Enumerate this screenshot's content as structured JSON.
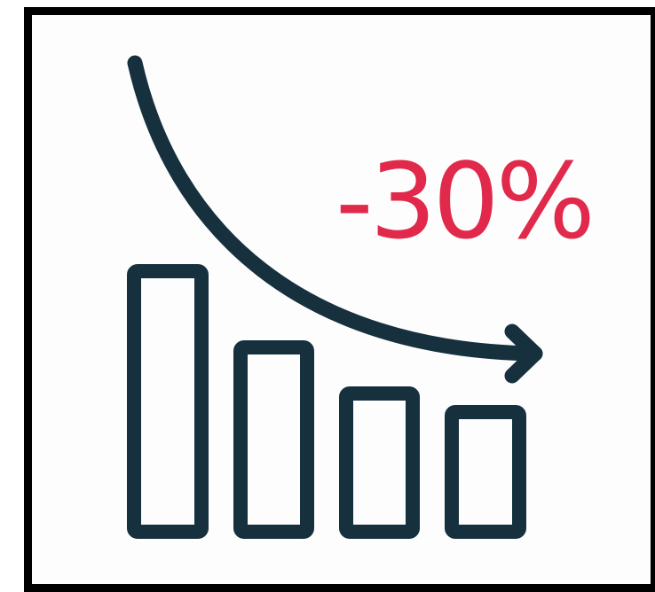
{
  "label": {
    "text": "-30%"
  },
  "colors": {
    "frame": "#000000",
    "background": "#fdfdfd",
    "stroke": "#16303e",
    "accent": "#e0294b"
  },
  "icons": {
    "main": "declining-bar-chart-icon",
    "arrow": "curved-down-arrow-icon"
  }
}
